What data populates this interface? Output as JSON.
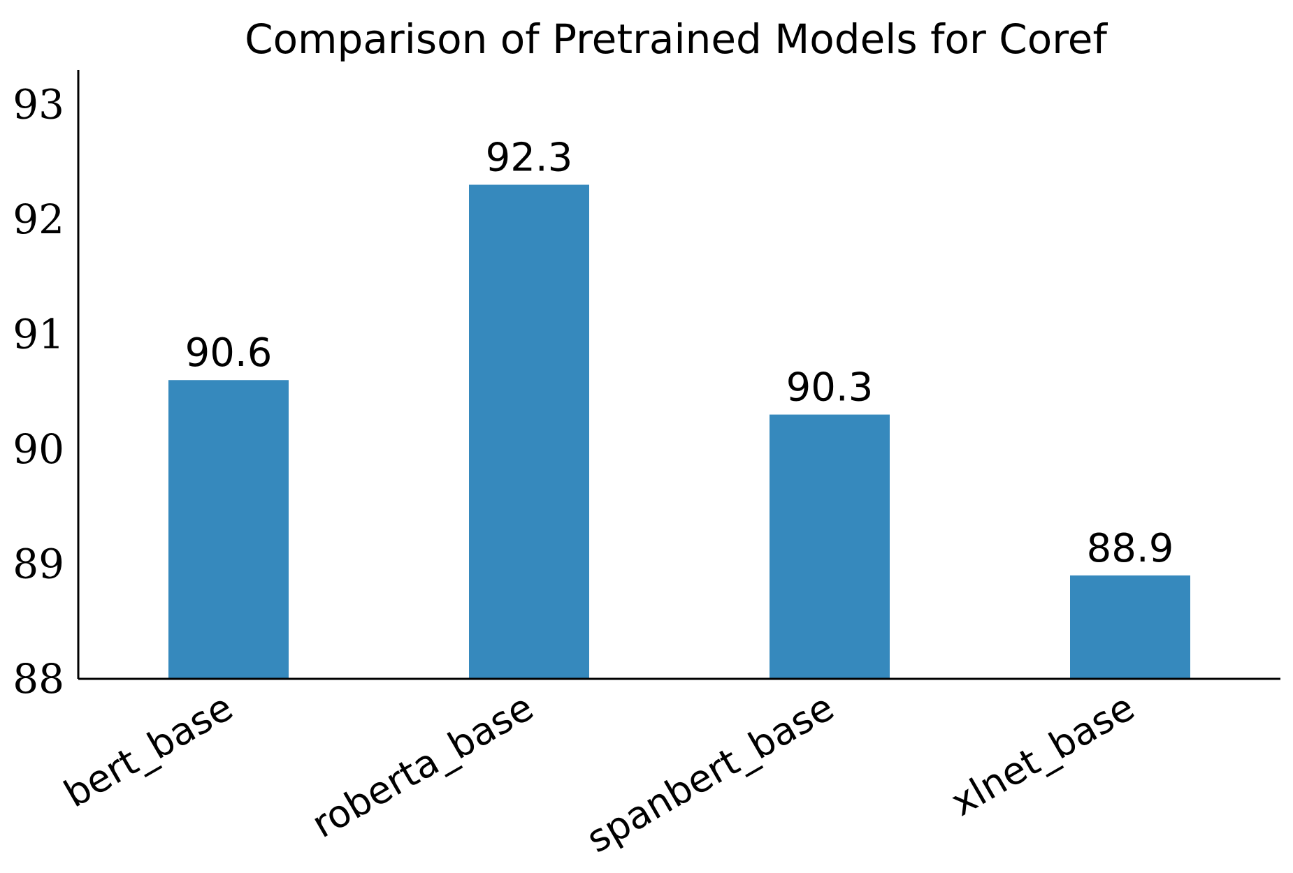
{
  "chart_data": {
    "type": "bar",
    "title": "Comparison of Pretrained Models for Coref",
    "xlabel": "",
    "ylabel": "",
    "categories": [
      "bert_base",
      "roberta_base",
      "spanbert_base",
      "xlnet_base"
    ],
    "values": [
      90.6,
      92.3,
      90.3,
      88.9
    ],
    "data_labels": [
      "90.6",
      "92.3",
      "90.3",
      "88.9"
    ],
    "ylim": [
      88,
      93.3
    ],
    "yticks": [
      88,
      89,
      90,
      91,
      92,
      93
    ],
    "ytick_labels": [
      "88",
      "89",
      "90",
      "91",
      "92",
      "93"
    ],
    "xtick_rotation": -30,
    "grid": false,
    "bar_color": "#3689bd",
    "spines": [
      "left",
      "bottom"
    ]
  }
}
